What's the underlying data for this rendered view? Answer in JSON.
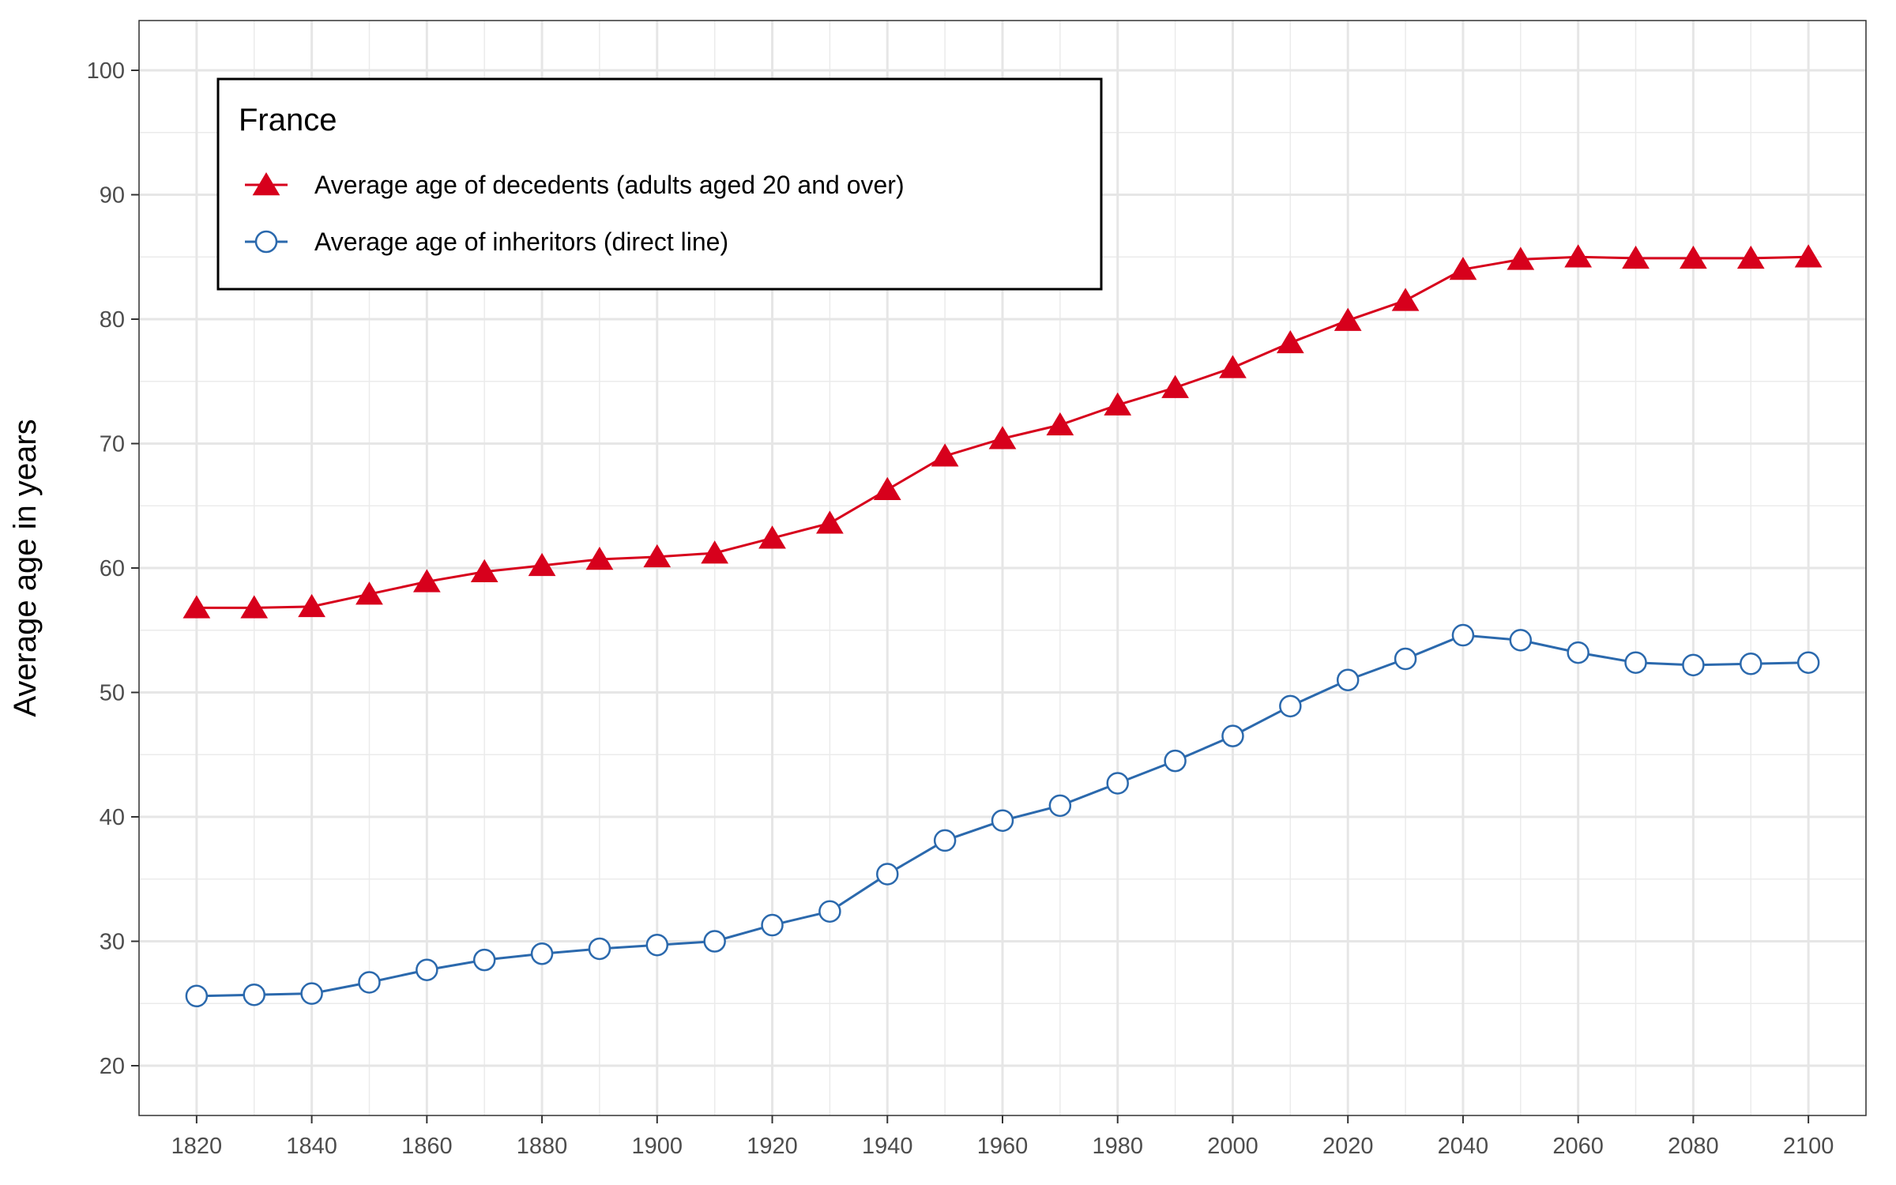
{
  "chart_data": {
    "type": "line",
    "title": "",
    "xlabel": "",
    "ylabel": "Average age in years",
    "xlim": [
      1810,
      2110
    ],
    "ylim": [
      16,
      104
    ],
    "x_ticks": [
      1820,
      1840,
      1860,
      1880,
      1900,
      1920,
      1940,
      1960,
      1980,
      2000,
      2020,
      2040,
      2060,
      2080,
      2100
    ],
    "y_ticks": [
      20,
      30,
      40,
      50,
      60,
      70,
      80,
      90,
      100
    ],
    "grid": true,
    "legend": {
      "title": "France",
      "position": "top-left"
    },
    "x": [
      1820,
      1830,
      1840,
      1850,
      1860,
      1870,
      1880,
      1890,
      1900,
      1910,
      1920,
      1930,
      1940,
      1950,
      1960,
      1970,
      1980,
      1990,
      2000,
      2010,
      2020,
      2030,
      2040,
      2050,
      2060,
      2070,
      2080,
      2090,
      2100
    ],
    "series": [
      {
        "name": "Average age of decedents (adults aged 20 and over)",
        "color": "#d7001c",
        "marker": "filled-triangle",
        "values": [
          56.8,
          56.8,
          56.9,
          57.9,
          58.9,
          59.7,
          60.2,
          60.7,
          60.9,
          61.2,
          62.4,
          63.6,
          66.3,
          69.0,
          70.4,
          71.5,
          73.1,
          74.5,
          76.1,
          78.1,
          79.9,
          81.5,
          84.0,
          84.8,
          85.0,
          84.9,
          84.9,
          84.9,
          85.0
        ]
      },
      {
        "name": "Average age of inheritors (direct line)",
        "color": "#2b69ad",
        "marker": "open-circle",
        "values": [
          25.6,
          25.7,
          25.8,
          26.7,
          27.7,
          28.5,
          29.0,
          29.4,
          29.7,
          30.0,
          31.3,
          32.4,
          35.4,
          38.1,
          39.7,
          40.9,
          42.7,
          44.5,
          46.5,
          48.9,
          51.0,
          52.7,
          54.6,
          54.2,
          53.2,
          52.4,
          52.2,
          52.3,
          52.4
        ]
      }
    ]
  }
}
